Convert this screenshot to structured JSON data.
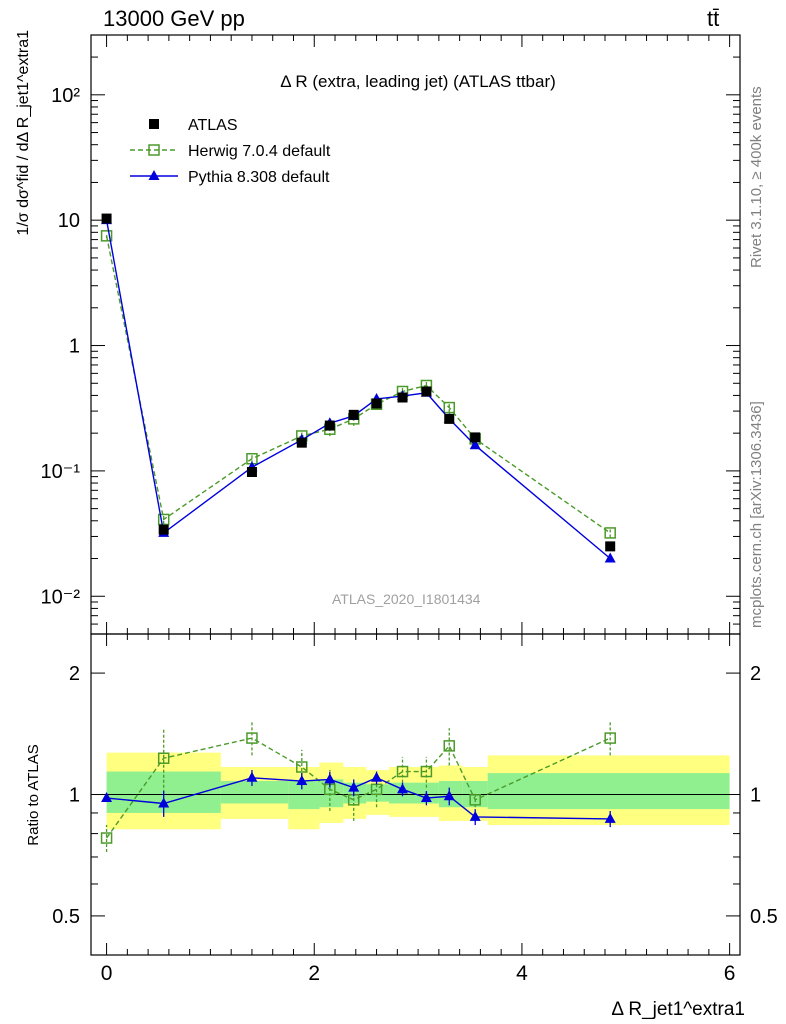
{
  "header": {
    "left": "13000 GeV pp",
    "right": "tt̄"
  },
  "side_labels": {
    "rivet": "Rivet 3.1.10, ≥ 400k events",
    "mcplots": "mcplots.cern.ch [arXiv:1306.3436]"
  },
  "analysis_id": "ATLAS_2020_I1801434",
  "colors": {
    "data": "#000000",
    "herwig": "#4c9a2a",
    "pythia": "#0000dd",
    "band_outer": "#ffff80",
    "band_inner": "#90f090",
    "analysis_text": "#a0a0a0"
  },
  "chart_data": [
    {
      "type": "line",
      "title": "Δ R (extra, leading jet) (ATLAS ttbar)",
      "ylabel": "1/σ dσ^fid / dΔ R_jet1^extra1",
      "yscale": "log",
      "ylim": [
        0.005,
        300
      ],
      "xlim": [
        -0.15,
        6.1
      ],
      "y_ticks": [
        "10⁻²",
        "10⁻¹",
        "1",
        "10",
        "10²"
      ],
      "legend_position": "top-left",
      "legend": [
        "ATLAS",
        "Herwig 7.0.4 default",
        "Pythia 8.308 default"
      ],
      "x": [
        0.0,
        0.55,
        1.4,
        1.88,
        2.15,
        2.38,
        2.6,
        2.85,
        3.08,
        3.3,
        3.55,
        4.85
      ],
      "series": [
        {
          "name": "ATLAS",
          "marker": "square",
          "values": [
            10.3,
            0.034,
            0.098,
            0.168,
            0.23,
            0.28,
            0.345,
            0.385,
            0.43,
            0.26,
            0.185,
            0.025
          ]
        },
        {
          "name": "Herwig 7.0.4 default",
          "marker": "open-square",
          "dashed": true,
          "values": [
            7.5,
            0.041,
            0.125,
            0.19,
            0.215,
            0.26,
            0.34,
            0.43,
            0.48,
            0.32,
            0.18,
            0.032
          ],
          "err": [
            0.04,
            0.08,
            0.08,
            0.08,
            0.12,
            0.12,
            0.08,
            0.08,
            0.08,
            0.08,
            0.03,
            0.08
          ]
        },
        {
          "name": "Pythia 8.308 default",
          "values": [
            10.0,
            0.032,
            0.107,
            0.177,
            0.24,
            0.275,
            0.375,
            0.395,
            0.42,
            0.26,
            0.16,
            0.02
          ],
          "err": [
            0.02,
            0.06,
            0.04,
            0.05,
            0.05,
            0.05,
            0.04,
            0.04,
            0.04,
            0.05,
            0.04,
            0.04
          ]
        }
      ]
    },
    {
      "type": "line",
      "ylabel": "Ratio to ATLAS",
      "xlabel": "Δ R_jet1^extra1",
      "ylim": [
        0.4,
        2.5
      ],
      "xlim": [
        -0.15,
        6.1
      ],
      "x_ticks": [
        "0",
        "2",
        "4",
        "6"
      ],
      "y_ticks": [
        "0.5",
        "1",
        "2"
      ],
      "reference_line": 1,
      "bands": [
        {
          "x0": 0.0,
          "x1": 1.1,
          "outer": [
            0.82,
            1.27
          ],
          "inner": [
            0.9,
            1.14
          ]
        },
        {
          "x0": 1.1,
          "x1": 1.75,
          "outer": [
            0.87,
            1.17
          ],
          "inner": [
            0.95,
            1.08
          ]
        },
        {
          "x0": 1.75,
          "x1": 2.05,
          "outer": [
            0.82,
            1.17
          ],
          "inner": [
            0.92,
            1.08
          ]
        },
        {
          "x0": 2.05,
          "x1": 2.28,
          "outer": [
            0.85,
            1.2
          ],
          "inner": [
            0.93,
            1.09
          ]
        },
        {
          "x0": 2.28,
          "x1": 2.5,
          "outer": [
            0.87,
            1.17
          ],
          "inner": [
            0.95,
            1.07
          ]
        },
        {
          "x0": 2.5,
          "x1": 2.72,
          "outer": [
            0.89,
            1.15
          ],
          "inner": [
            0.96,
            1.06
          ]
        },
        {
          "x0": 2.72,
          "x1": 2.97,
          "outer": [
            0.88,
            1.17
          ],
          "inner": [
            0.95,
            1.07
          ]
        },
        {
          "x0": 2.97,
          "x1": 3.2,
          "outer": [
            0.88,
            1.17
          ],
          "inner": [
            0.95,
            1.07
          ]
        },
        {
          "x0": 3.2,
          "x1": 3.43,
          "outer": [
            0.86,
            1.18
          ],
          "inner": [
            0.93,
            1.08
          ]
        },
        {
          "x0": 3.43,
          "x1": 3.67,
          "outer": [
            0.86,
            1.17
          ],
          "inner": [
            0.93,
            1.08
          ]
        },
        {
          "x0": 3.67,
          "x1": 6.0,
          "outer": [
            0.84,
            1.25
          ],
          "inner": [
            0.92,
            1.13
          ]
        }
      ],
      "series": [
        {
          "name": "Herwig 7.0.4 default",
          "marker": "open-square",
          "dashed": true,
          "values": [
            0.78,
            1.23,
            1.38,
            1.17,
            1.03,
            0.97,
            1.03,
            1.14,
            1.14,
            1.32,
            0.97,
            1.38
          ],
          "err": [
            0.06,
            0.22,
            0.13,
            0.12,
            0.12,
            0.11,
            0.1,
            0.1,
            0.1,
            0.14,
            0.04,
            0.13
          ]
        },
        {
          "name": "Pythia 8.308 default",
          "marker": "triangle",
          "values": [
            0.98,
            0.95,
            1.1,
            1.08,
            1.09,
            1.04,
            1.1,
            1.03,
            0.98,
            0.99,
            0.88,
            0.87
          ],
          "err": [
            0.02,
            0.07,
            0.05,
            0.05,
            0.05,
            0.05,
            0.04,
            0.04,
            0.04,
            0.05,
            0.04,
            0.04
          ]
        }
      ]
    }
  ]
}
